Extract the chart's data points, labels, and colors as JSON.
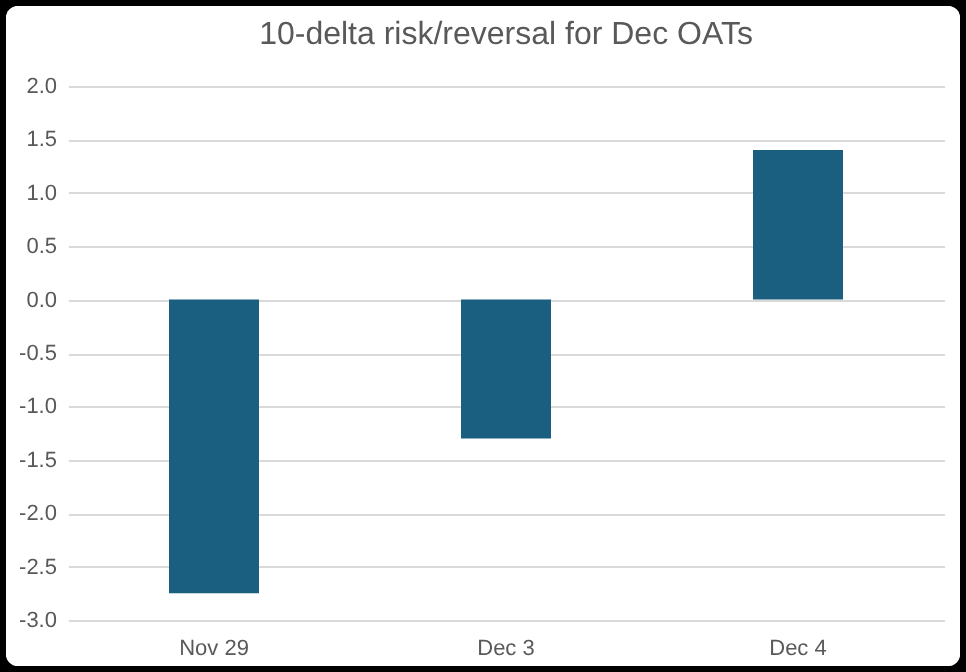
{
  "chart_data": {
    "type": "bar",
    "title": "10-delta risk/reversal for Dec OATs",
    "categories": [
      "Nov 29",
      "Dec 3",
      "Dec 4"
    ],
    "values": [
      -2.75,
      -1.3,
      1.4
    ],
    "color": "#1a5e80",
    "ylim": [
      -3.0,
      2.0
    ],
    "yticks": [
      {
        "value": -3,
        "label": "-3.0"
      },
      {
        "value": -2.5,
        "label": "-2.5"
      },
      {
        "value": -2,
        "label": "-2.0"
      },
      {
        "value": -1.5,
        "label": "-1.5"
      },
      {
        "value": -1,
        "label": "-1.0"
      },
      {
        "value": -0.5,
        "label": "-0.5"
      },
      {
        "value": 0,
        "label": "0.0"
      },
      {
        "value": 0.5,
        "label": "0.5"
      },
      {
        "value": 1,
        "label": "1.0"
      },
      {
        "value": 1.5,
        "label": "1.5"
      },
      {
        "value": 2,
        "label": "2.0"
      }
    ],
    "grid": "y"
  }
}
